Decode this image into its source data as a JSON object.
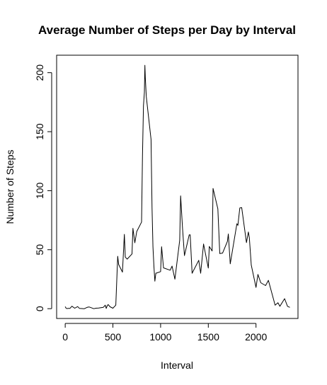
{
  "chart_data": {
    "type": "line",
    "title": "Average Number of Steps per Day by Interval",
    "xlabel": "Interval",
    "ylabel": "Number of Steps",
    "xlim": [
      -90,
      2440
    ],
    "ylim": [
      -8.3,
      214.8
    ],
    "grid": false,
    "xticks": [
      0,
      500,
      1000,
      1500,
      2000
    ],
    "yticks": [
      0,
      50,
      100,
      150,
      200
    ],
    "series": [
      {
        "color": "#000000",
        "x": [
          0,
          10,
          20,
          30,
          50,
          70,
          100,
          130,
          150,
          200,
          230,
          250,
          300,
          320,
          350,
          400,
          420,
          430,
          440,
          450,
          470,
          500,
          530,
          550,
          560,
          600,
          620,
          630,
          650,
          700,
          710,
          730,
          750,
          800,
          810,
          820,
          830,
          835,
          840,
          850,
          900,
          910,
          920,
          930,
          940,
          950,
          1000,
          1010,
          1030,
          1100,
          1120,
          1150,
          1200,
          1210,
          1230,
          1250,
          1300,
          1310,
          1330,
          1400,
          1420,
          1450,
          1500,
          1510,
          1540,
          1550,
          1600,
          1620,
          1650,
          1700,
          1710,
          1730,
          1800,
          1810,
          1830,
          1850,
          1900,
          1920,
          1930,
          1950,
          2000,
          2020,
          2050,
          2100,
          2130,
          2150,
          2200,
          2230,
          2250,
          2300,
          2330,
          2355
        ],
        "y": [
          1.7,
          0.3,
          0.1,
          0.2,
          0.3,
          2.1,
          0.4,
          1.8,
          0.2,
          0,
          1.1,
          1.5,
          0,
          0.4,
          0.6,
          1.2,
          3.0,
          0.2,
          2.4,
          3.5,
          1.6,
          0.4,
          3.0,
          44.4,
          37.5,
          31.0,
          63.0,
          43.7,
          42.0,
          46.4,
          68.1,
          55.9,
          65.4,
          73.4,
          129.4,
          172.0,
          183.4,
          206.2,
          195.9,
          179.6,
          143.5,
          85.5,
          52.4,
          35.6,
          23.3,
          30.0,
          31.4,
          52.5,
          34.6,
          32.6,
          36.1,
          25.0,
          58.0,
          95.6,
          68.0,
          45.0,
          62.5,
          62.6,
          30.0,
          41.0,
          30.0,
          54.8,
          34.4,
          52.7,
          48.9,
          101.9,
          84.6,
          46.7,
          47.1,
          57.0,
          63.3,
          38.0,
          72.0,
          70.6,
          85.3,
          85.6,
          56.0,
          65.0,
          60.0,
          37.0,
          18.0,
          29.0,
          22.0,
          19.6,
          24.0,
          18.0,
          3.0,
          5.0,
          2.0,
          8.5,
          2.0,
          1.1
        ]
      }
    ]
  }
}
